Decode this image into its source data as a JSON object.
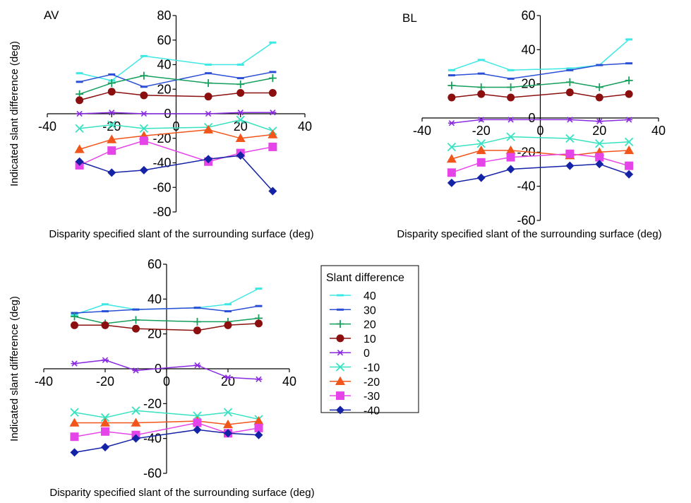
{
  "figure": {
    "legend": {
      "title": "Slant difference",
      "entries": [
        "40",
        "30",
        "20",
        "10",
        "0",
        "-10",
        "-20",
        "-30",
        "-40"
      ]
    }
  },
  "colors": {
    "40": "#3ee8e4",
    "30": "#2a4fd6",
    "20": "#159f5c",
    "10": "#8b0f0f",
    "0": "#8a2be2",
    "-10": "#36e2c0",
    "-20": "#f2551a",
    "-30": "#e545e8",
    "-40": "#1422a6"
  },
  "markers": {
    "40": "dash",
    "30": "dash",
    "20": "plus",
    "10": "circle",
    "0": "asterisk",
    "-10": "x",
    "-20": "triangle",
    "-30": "square",
    "-40": "diamond"
  },
  "chart_data": [
    {
      "type": "line",
      "title": "AV",
      "xlabel": "Disparity specified slant of the surrounding surface (deg)",
      "ylabel": "Indicated slant difference (deg)",
      "xlim": [
        -40,
        40
      ],
      "ylim": [
        -80,
        80
      ],
      "xticks": [
        -40,
        -20,
        0,
        20,
        40
      ],
      "yticks": [
        -80,
        -60,
        -40,
        -20,
        0,
        20,
        40,
        60,
        80
      ],
      "x": [
        -30,
        -20,
        -10,
        10,
        20,
        30
      ],
      "grid": false,
      "series": [
        {
          "name": "40",
          "values": [
            33,
            27,
            47,
            40,
            40,
            58
          ]
        },
        {
          "name": "30",
          "values": [
            26,
            32,
            22,
            33,
            29,
            34
          ]
        },
        {
          "name": "20",
          "values": [
            16,
            25,
            31,
            25,
            24,
            29
          ]
        },
        {
          "name": "10",
          "values": [
            11,
            18,
            15,
            14,
            17,
            17
          ]
        },
        {
          "name": "0",
          "values": [
            0,
            1,
            0,
            0,
            1,
            1
          ]
        },
        {
          "name": "-10",
          "values": [
            -12,
            -9,
            -12,
            -11,
            -5,
            -14
          ]
        },
        {
          "name": "-20",
          "values": [
            -29,
            -21,
            -18,
            -13,
            -20,
            -17
          ]
        },
        {
          "name": "-30",
          "values": [
            -42,
            -30,
            -22,
            -39,
            -32,
            -27
          ]
        },
        {
          "name": "-40",
          "values": [
            -39,
            -48,
            -46,
            -37,
            -34,
            -63
          ]
        }
      ]
    },
    {
      "type": "line",
      "title": "BL",
      "xlabel": "Disparity specified slant of the surrounding surface (deg)",
      "ylabel": "",
      "xlim": [
        -40,
        40
      ],
      "ylim": [
        -60,
        60
      ],
      "xticks": [
        -40,
        -20,
        0,
        20,
        40
      ],
      "yticks": [
        -60,
        -40,
        -20,
        0,
        20,
        40,
        60
      ],
      "x": [
        -30,
        -20,
        -10,
        10,
        20,
        30
      ],
      "grid": false,
      "series": [
        {
          "name": "40",
          "values": [
            28,
            34,
            28,
            29,
            31,
            46
          ]
        },
        {
          "name": "30",
          "values": [
            25,
            26,
            23,
            28,
            31,
            32
          ]
        },
        {
          "name": "20",
          "values": [
            19,
            18,
            18,
            21,
            18,
            22
          ]
        },
        {
          "name": "10",
          "values": [
            12,
            14,
            12,
            15,
            12,
            14
          ]
        },
        {
          "name": "0",
          "values": [
            -3,
            -1,
            -1,
            -1,
            -2,
            -1
          ]
        },
        {
          "name": "-10",
          "values": [
            -17,
            -15,
            -11,
            -12,
            -15,
            -14
          ]
        },
        {
          "name": "-20",
          "values": [
            -24,
            -19,
            -19,
            -22,
            -20,
            -19
          ]
        },
        {
          "name": "-30",
          "values": [
            -32,
            -26,
            -23,
            -21,
            -23,
            -28
          ]
        },
        {
          "name": "-40",
          "values": [
            -38,
            -35,
            -30,
            -28,
            -27,
            -33
          ]
        }
      ]
    },
    {
      "type": "line",
      "title": "",
      "xlabel": "Disparity specified slant of the surrounding surface (deg)",
      "ylabel": "Indicated slant difference (deg)",
      "xlim": [
        -40,
        40
      ],
      "ylim": [
        -60,
        60
      ],
      "xticks": [
        -40,
        -20,
        0,
        20,
        40
      ],
      "yticks": [
        -60,
        -40,
        -20,
        0,
        20,
        40,
        60
      ],
      "x": [
        -30,
        -20,
        -10,
        10,
        20,
        30
      ],
      "grid": false,
      "series": [
        {
          "name": "40",
          "values": [
            31,
            37,
            34,
            35,
            37,
            46
          ]
        },
        {
          "name": "30",
          "values": [
            32,
            33,
            34,
            35,
            33,
            36
          ]
        },
        {
          "name": "20",
          "values": [
            30,
            26,
            28,
            27,
            27,
            29
          ]
        },
        {
          "name": "10",
          "values": [
            25,
            25,
            23,
            22,
            25,
            26
          ]
        },
        {
          "name": "0",
          "values": [
            3,
            5,
            -1,
            2,
            -5,
            -6
          ]
        },
        {
          "name": "-10",
          "values": [
            -25,
            -28,
            -24,
            -27,
            -25,
            -29
          ]
        },
        {
          "name": "-20",
          "values": [
            -31,
            -31,
            -31,
            -30,
            -32,
            -30
          ]
        },
        {
          "name": "-30",
          "values": [
            -39,
            -36,
            -38,
            -31,
            -37,
            -34
          ]
        },
        {
          "name": "-40",
          "values": [
            -48,
            -45,
            -40,
            -35,
            -37,
            -38
          ]
        }
      ]
    }
  ]
}
